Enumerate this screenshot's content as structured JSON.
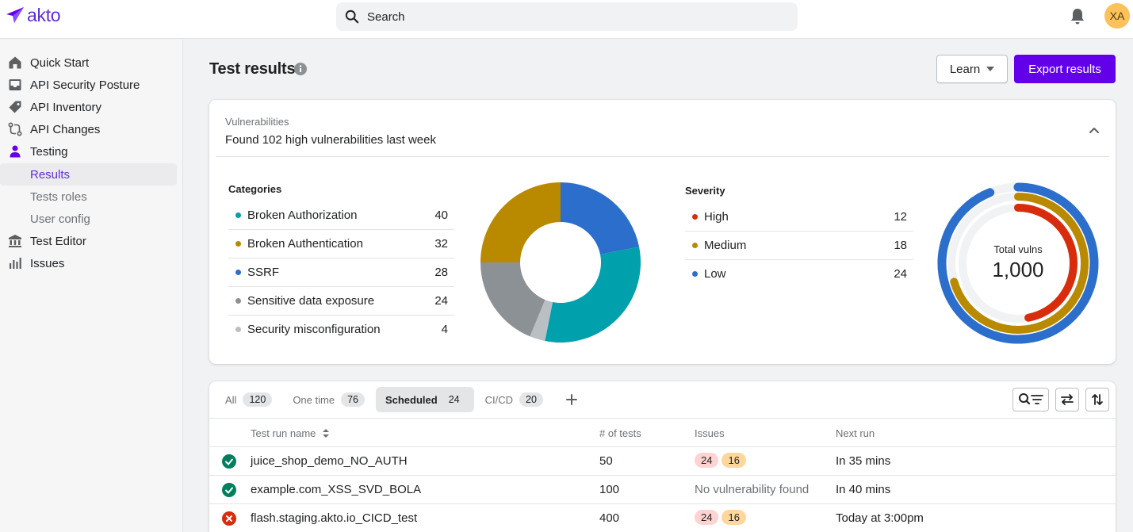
{
  "brand": {
    "name": "akto",
    "accent": "#6200ea"
  },
  "search": {
    "placeholder": "Search"
  },
  "user": {
    "initials": "XA"
  },
  "sidebar": {
    "items": [
      {
        "label": "Quick Start",
        "icon": "home-icon"
      },
      {
        "label": "API Security Posture",
        "icon": "inbox-icon"
      },
      {
        "label": "API Inventory",
        "icon": "tag-icon"
      },
      {
        "label": "API Changes",
        "icon": "changes-icon"
      },
      {
        "label": "Testing",
        "icon": "person-icon"
      },
      {
        "label": "Results",
        "sub": true,
        "active": true
      },
      {
        "label": "Tests roles",
        "sub": true
      },
      {
        "label": "User config",
        "sub": true
      },
      {
        "label": "Test Editor",
        "icon": "bank-icon"
      },
      {
        "label": "Issues",
        "icon": "bar-chart-icon"
      }
    ]
  },
  "page": {
    "title": "Test results",
    "learn_label": "Learn",
    "export_label": "Export results"
  },
  "vulnerabilities": {
    "label": "Vulnerabilities",
    "headline": "Found 102 high vulnerabilities last week",
    "categories_title": "Categories",
    "severity_title": "Severity",
    "total_label": "Total vulns",
    "total_value": "1,000"
  },
  "chart_data": [
    {
      "type": "pie",
      "title": "Categories",
      "categories": [
        "Broken Authorization",
        "Broken Authentication",
        "SSRF",
        "Sensitive data exposure",
        "Security misconfiguration"
      ],
      "values": [
        40,
        32,
        28,
        24,
        4
      ],
      "colors": [
        "#00a0ac",
        "#b98900",
        "#2c6ecb",
        "#8c9196",
        "#babfc4"
      ]
    },
    {
      "type": "radial-bar",
      "title": "Severity",
      "categories": [
        "High",
        "Medium",
        "Low"
      ],
      "values": [
        12,
        18,
        24
      ],
      "colors": [
        "#d82c0d",
        "#b98900",
        "#2c6ecb"
      ]
    }
  ],
  "table": {
    "tabs": [
      {
        "label": "All",
        "count": "120"
      },
      {
        "label": "One time",
        "count": "76"
      },
      {
        "label": "Scheduled",
        "count": "24",
        "selected": true
      },
      {
        "label": "CI/CD",
        "count": "20"
      }
    ],
    "headers": {
      "name": "Test run name",
      "tests": "# of tests",
      "issues": "Issues",
      "next_run": "Next run"
    },
    "rows": [
      {
        "status": "success",
        "name": "juice_shop_demo_NO_AUTH",
        "tests": "50",
        "issues_high": "24",
        "issues_medium": "16",
        "next_run": "In 35 mins"
      },
      {
        "status": "success",
        "name": "example.com_XSS_SVD_BOLA",
        "tests": "100",
        "issues_text": "No vulnerability found",
        "next_run": "In 40 mins"
      },
      {
        "status": "error",
        "name": "flash.staging.akto.io_CICD_test",
        "tests": "400",
        "issues_high": "24",
        "issues_medium": "16",
        "next_run": "Today at 3:00pm"
      }
    ]
  }
}
